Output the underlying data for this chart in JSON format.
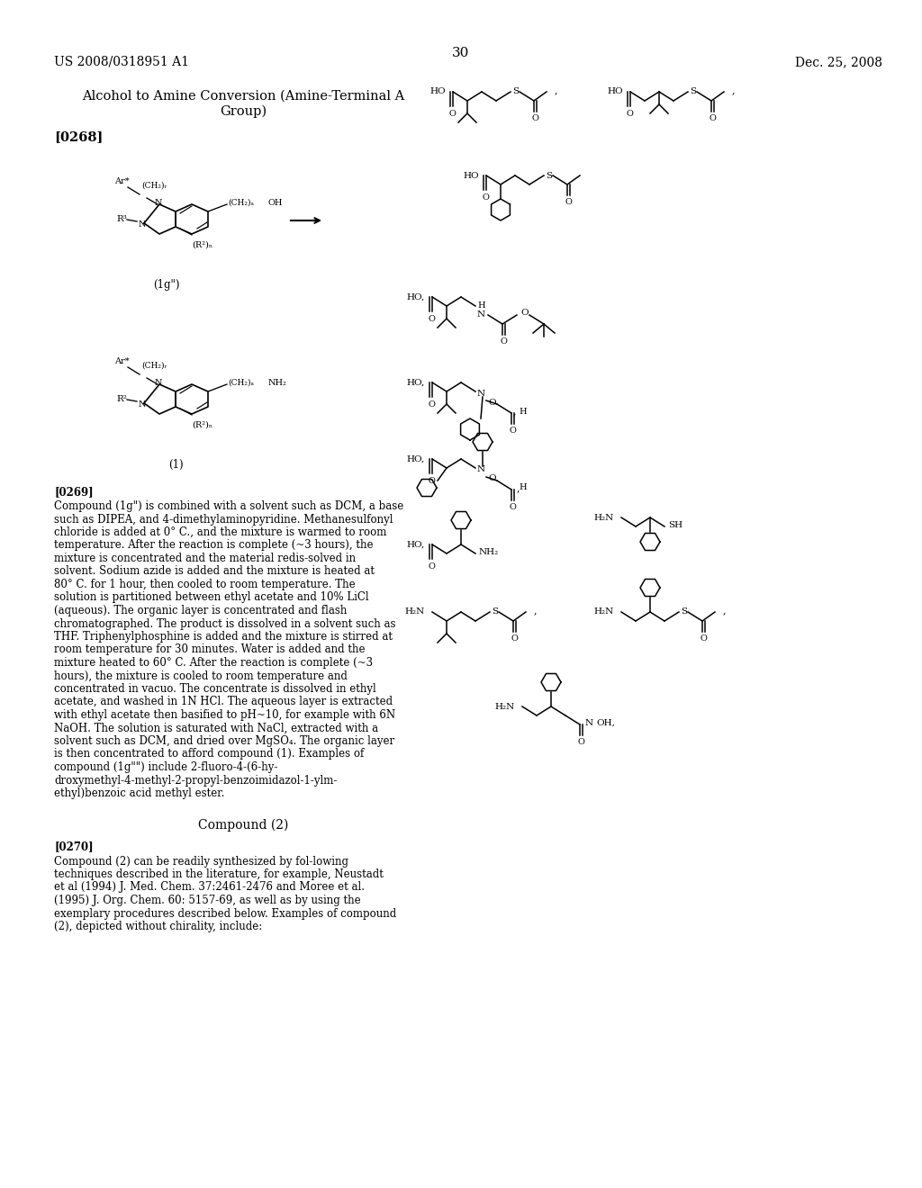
{
  "page_header_left": "US 2008/0318951 A1",
  "page_header_right": "Dec. 25, 2008",
  "page_number": "30",
  "background_color": "#ffffff",
  "text_color": "#000000",
  "section_title": "Alcohol to Amine Conversion (Amine-Terminal A\nGroup)",
  "paragraph_0268_label": "[0268]",
  "compound_label_1g": "(1g\")",
  "compound_label_1": "(1)",
  "paragraph_0269_label": "[0269]",
  "paragraph_0269_text": "Compound (1g\") is combined with a solvent such as DCM, a base such as DIPEA, and 4-dimethylaminopyridine. Methanesulfonyl chloride is added at 0° C., and the mixture is warmed to room temperature. After the reaction is complete (~3 hours), the mixture is concentrated and the material redis-solved in solvent. Sodium azide is added and the mixture is heated at 80° C. for 1 hour, then cooled to room temperature. The solution is partitioned between ethyl acetate and 10% LiCl (aqueous). The organic layer is concentrated and flash chromatographed. The product is dissolved in a solvent such as THF. Triphenylphosphine is added and the mixture is stirred at room temperature for 30 minutes. Water is added and the mixture heated to 60° C. After the reaction is complete (~3 hours), the mixture is cooled to room temperature and concentrated in vacuo. The concentrate is dissolved in ethyl acetate, and washed in 1N HCl. The aqueous layer is extracted with ethyl acetate then basified to pH~10, for example with 6N NaOH. The solution is saturated with NaCl, extracted with a solvent such as DCM, and dried over MgSO₄. The organic layer is then concentrated to afford compound (1). Examples of compound (1g\"\") include 2-fluoro-4-(6-hy-droxymethyl-4-methyl-2-propyl-benzoimidazol-1-ylm-ethyl)benzoic acid methyl ester.",
  "compound_2_label": "Compound (2)",
  "paragraph_0270_label": "[0270]",
  "paragraph_0270_text": "Compound (2) can be readily synthesized by fol-lowing techniques described in the literature, for example, Neustadt et al (1994) J. Med. Chem. 37:2461-2476 and Moree et al. (1995) J. Org. Chem. 60: 5157-69, as well as by using the exemplary procedures described below. Examples of compound (2), depicted without chirality, include:"
}
